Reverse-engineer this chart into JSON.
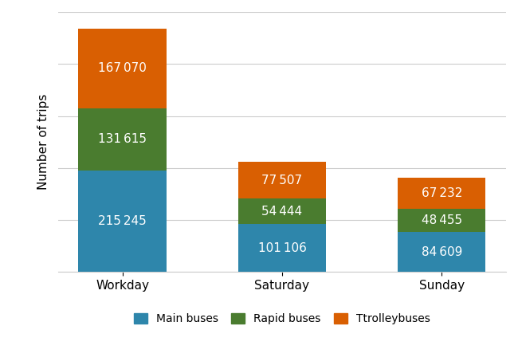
{
  "categories": [
    "Workday",
    "Saturday",
    "Sunday"
  ],
  "main_buses": [
    215245,
    101106,
    84609
  ],
  "rapid_buses": [
    131615,
    54444,
    48455
  ],
  "trolleybuses": [
    167070,
    77507,
    67232
  ],
  "color_main": "#2e86ab",
  "color_rapid": "#4a7c2f",
  "color_trolley": "#d95f02",
  "ylabel": "Number of trips",
  "legend_labels": [
    "Main buses",
    "Rapid buses",
    "Ttrolleybuses"
  ],
  "bar_width": 0.55,
  "ylim": [
    0,
    550000
  ],
  "label_fontsize": 11,
  "tick_fontsize": 11,
  "ylabel_fontsize": 11,
  "grid_color": "#cccccc",
  "num_gridlines": 6
}
